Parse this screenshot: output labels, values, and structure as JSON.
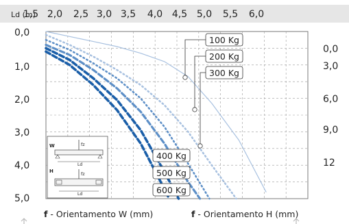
{
  "chart_data": {
    "type": "line",
    "header_axis_label": "Ld (m)",
    "x_ticks": [
      "1,5",
      "2,0",
      "2,5",
      "3,0",
      "3,5",
      "4,0",
      "4,5",
      "5,0",
      "5,5",
      "6,0"
    ],
    "y_left_ticks": [
      "0,0",
      "1,0",
      "2,0",
      "3,0",
      "4,0",
      "5,0"
    ],
    "y_right_ticks": [
      "0,0",
      "3,0",
      "6,0",
      "9,0",
      "12"
    ],
    "xlim": [
      1.5,
      6.0
    ],
    "ylim_left": [
      0,
      5.0
    ],
    "ylim_right": [
      0,
      15
    ],
    "grid": true,
    "xlabel_left_bold": "f",
    "xlabel_left": " - Orientamento W (mm)",
    "xlabel_right_bold": "f",
    "xlabel_right": " - Orientamento H (mm)",
    "colors": {
      "dark_blue": "#1a5ea8",
      "mid_blue": "#5d8fc7",
      "light_blue": "#a8c1e0",
      "grid": "#9a9a9a",
      "header_bg": "#e6e6e6"
    },
    "series": [
      {
        "name": "100 Kg",
        "style": "solid",
        "color": "light_blue",
        "x": [
          1.5,
          2.0,
          2.5,
          3.0,
          3.5,
          4.0,
          4.5,
          5.0,
          5.5,
          6.0
        ],
        "y": [
          0.0,
          0.15,
          0.3,
          0.45,
          0.65,
          0.9,
          1.35,
          2.15,
          3.25,
          4.8
        ]
      },
      {
        "name": "200 Kg",
        "style": "dotted",
        "color": "light_blue",
        "x": [
          1.5,
          2.0,
          2.5,
          3.0,
          3.5,
          4.0,
          4.5,
          5.0,
          5.45
        ],
        "y": [
          0.1,
          0.4,
          0.75,
          1.15,
          1.6,
          2.2,
          3.0,
          4.0,
          5.0
        ]
      },
      {
        "name": "300 Kg",
        "style": "dotted",
        "color": "mid_blue",
        "x": [
          1.5,
          2.0,
          2.5,
          3.0,
          3.5,
          4.0,
          4.5,
          4.95
        ],
        "y": [
          0.25,
          0.55,
          0.95,
          1.4,
          2.0,
          2.85,
          3.95,
          5.0
        ]
      },
      {
        "name": "400 Kg",
        "style": "dashed",
        "color": "mid_blue",
        "x": [
          1.5,
          2.0,
          2.5,
          3.0,
          3.5,
          4.0,
          4.5,
          4.75
        ],
        "y": [
          0.4,
          0.7,
          1.15,
          1.7,
          2.4,
          3.35,
          4.5,
          5.0
        ]
      },
      {
        "name": "500 Kg",
        "style": "dashed",
        "color": "dark_blue",
        "x": [
          1.5,
          2.0,
          2.5,
          3.0,
          3.5,
          4.0,
          4.3
        ],
        "y": [
          0.5,
          0.85,
          1.4,
          2.05,
          2.95,
          4.2,
          5.0
        ]
      },
      {
        "name": "600 Kg",
        "style": "dashed",
        "color": "dark_blue",
        "x": [
          1.5,
          2.0,
          2.5,
          3.0,
          3.5,
          3.85,
          4.1
        ],
        "y": [
          0.6,
          1.0,
          1.6,
          2.35,
          3.35,
          4.3,
          5.0
        ]
      }
    ],
    "inset": {
      "label_w": "W",
      "label_h": "H",
      "label_fz": "fz",
      "label_ld": "Ld"
    }
  }
}
